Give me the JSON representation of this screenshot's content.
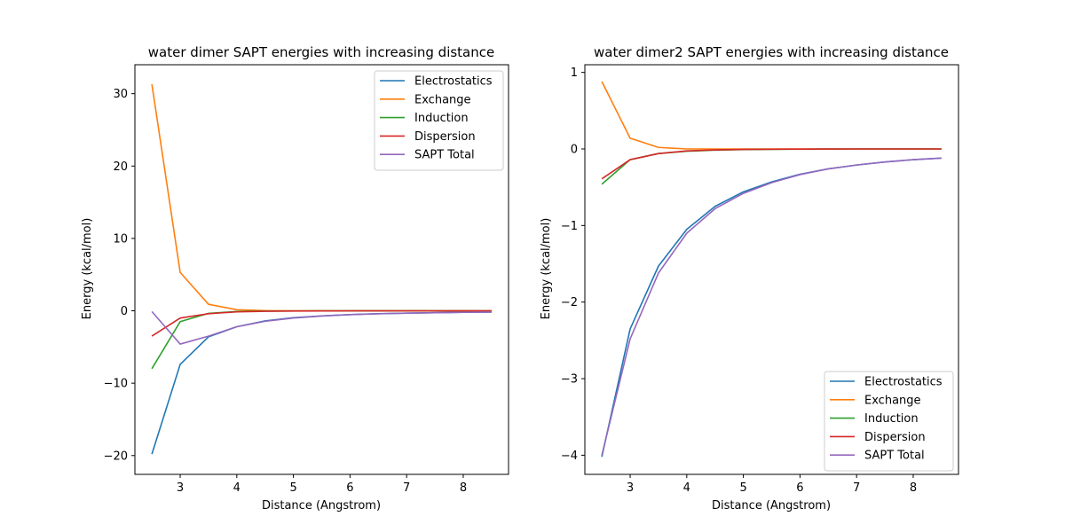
{
  "chart_data": [
    {
      "type": "line",
      "title": "water dimer SAPT energies with increasing distance",
      "xlabel": "Distance (Angstrom)",
      "ylabel": "Energy (kcal/mol)",
      "xlim": [
        2.2,
        8.8
      ],
      "ylim": [
        -22.6,
        34.0
      ],
      "xticks": [
        3,
        4,
        5,
        6,
        7,
        8
      ],
      "yticks": [
        -20,
        -10,
        0,
        10,
        20,
        30
      ],
      "ytick_labels": [
        "−20",
        "−10",
        "0",
        "10",
        "20",
        "30"
      ],
      "legend_position": "upper right",
      "x": [
        2.5,
        3.0,
        3.5,
        4.0,
        4.5,
        5.0,
        5.5,
        6.0,
        6.5,
        7.0,
        7.5,
        8.0,
        8.5
      ],
      "series": [
        {
          "name": "Electrostatics",
          "color": "#1f77b4",
          "values": [
            -19.8,
            -7.4,
            -3.6,
            -2.2,
            -1.4,
            -0.95,
            -0.7,
            -0.52,
            -0.4,
            -0.32,
            -0.26,
            -0.21,
            -0.17
          ]
        },
        {
          "name": "Exchange",
          "color": "#ff7f0e",
          "values": [
            31.3,
            5.3,
            0.9,
            0.15,
            0.02,
            0.0,
            0.0,
            0.0,
            0.0,
            0.0,
            0.0,
            0.0,
            0.0
          ]
        },
        {
          "name": "Induction",
          "color": "#2ca02c",
          "values": [
            -8.0,
            -1.5,
            -0.35,
            -0.1,
            -0.04,
            -0.02,
            -0.01,
            0.0,
            0.0,
            0.0,
            0.0,
            0.0,
            0.0
          ]
        },
        {
          "name": "Dispersion",
          "color": "#d62728",
          "values": [
            -3.5,
            -1.0,
            -0.4,
            -0.15,
            -0.07,
            -0.04,
            -0.02,
            -0.01,
            -0.01,
            0.0,
            0.0,
            0.0,
            0.0
          ]
        },
        {
          "name": "SAPT Total",
          "color": "#9467bd",
          "values": [
            -0.1,
            -4.6,
            -3.5,
            -2.2,
            -1.45,
            -1.0,
            -0.72,
            -0.53,
            -0.41,
            -0.32,
            -0.26,
            -0.21,
            -0.17
          ]
        }
      ]
    },
    {
      "type": "line",
      "title": "water dimer2 SAPT energies with increasing distance",
      "xlabel": "Distance (Angstrom)",
      "ylabel": "Energy (kcal/mol)",
      "xlim": [
        2.2,
        8.8
      ],
      "ylim": [
        -4.25,
        1.1
      ],
      "xticks": [
        3,
        4,
        5,
        6,
        7,
        8
      ],
      "yticks": [
        -4,
        -3,
        -2,
        -1,
        0,
        1
      ],
      "ytick_labels": [
        "−4",
        "−3",
        "−2",
        "−1",
        "0",
        "1"
      ],
      "legend_position": "lower right",
      "x": [
        2.5,
        3.0,
        3.5,
        4.0,
        4.5,
        5.0,
        5.5,
        6.0,
        6.5,
        7.0,
        7.5,
        8.0,
        8.5
      ],
      "series": [
        {
          "name": "Electrostatics",
          "color": "#1f77b4",
          "values": [
            -4.02,
            -2.35,
            -1.53,
            -1.05,
            -0.75,
            -0.56,
            -0.43,
            -0.33,
            -0.26,
            -0.21,
            -0.17,
            -0.14,
            -0.12
          ]
        },
        {
          "name": "Exchange",
          "color": "#ff7f0e",
          "values": [
            0.88,
            0.14,
            0.02,
            0.0,
            0.0,
            0.0,
            0.0,
            0.0,
            0.0,
            0.0,
            0.0,
            0.0,
            0.0
          ]
        },
        {
          "name": "Induction",
          "color": "#2ca02c",
          "values": [
            -0.46,
            -0.14,
            -0.06,
            -0.03,
            -0.015,
            -0.008,
            -0.005,
            -0.003,
            0.0,
            0.0,
            0.0,
            0.0,
            0.0
          ]
        },
        {
          "name": "Dispersion",
          "color": "#d62728",
          "values": [
            -0.39,
            -0.14,
            -0.06,
            -0.025,
            -0.012,
            -0.007,
            -0.004,
            -0.002,
            -0.001,
            0.0,
            0.0,
            0.0,
            0.0
          ]
        },
        {
          "name": "SAPT Total",
          "color": "#9467bd",
          "values": [
            -4.0,
            -2.48,
            -1.62,
            -1.1,
            -0.78,
            -0.58,
            -0.44,
            -0.335,
            -0.26,
            -0.21,
            -0.17,
            -0.14,
            -0.12
          ]
        }
      ]
    }
  ]
}
